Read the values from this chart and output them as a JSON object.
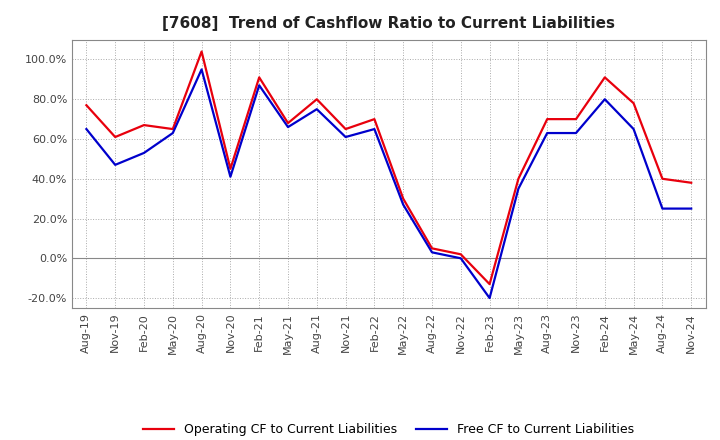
{
  "title": "[7608]  Trend of Cashflow Ratio to Current Liabilities",
  "x_labels": [
    "Aug-19",
    "Nov-19",
    "Feb-20",
    "May-20",
    "Aug-20",
    "Nov-20",
    "Feb-21",
    "May-21",
    "Aug-21",
    "Nov-21",
    "Feb-22",
    "May-22",
    "Aug-22",
    "Nov-22",
    "Feb-23",
    "May-23",
    "Aug-23",
    "Nov-23",
    "Feb-24",
    "May-24",
    "Aug-24",
    "Nov-24"
  ],
  "operating_cf": [
    0.77,
    0.61,
    0.67,
    0.65,
    1.04,
    0.45,
    0.91,
    0.68,
    0.8,
    0.65,
    0.7,
    0.3,
    0.05,
    0.02,
    -0.13,
    0.4,
    0.7,
    0.7,
    0.91,
    0.78,
    0.4,
    0.38
  ],
  "free_cf": [
    0.65,
    0.47,
    0.53,
    0.63,
    0.95,
    0.41,
    0.87,
    0.66,
    0.75,
    0.61,
    0.65,
    0.27,
    0.03,
    0.0,
    -0.2,
    0.35,
    0.63,
    0.63,
    0.8,
    0.65,
    0.25,
    0.25
  ],
  "operating_cf_color": "#e8000d",
  "free_cf_color": "#0000cc",
  "background_color": "#ffffff",
  "plot_bg_color": "#ffffff",
  "grid_color": "#aaaaaa",
  "ylim": [
    -0.25,
    1.1
  ],
  "yticks": [
    -0.2,
    0.0,
    0.2,
    0.4,
    0.6,
    0.8,
    1.0
  ],
  "legend_labels": [
    "Operating CF to Current Liabilities",
    "Free CF to Current Liabilities"
  ],
  "title_fontsize": 11,
  "axis_fontsize": 8,
  "legend_fontsize": 9,
  "line_width": 1.6
}
